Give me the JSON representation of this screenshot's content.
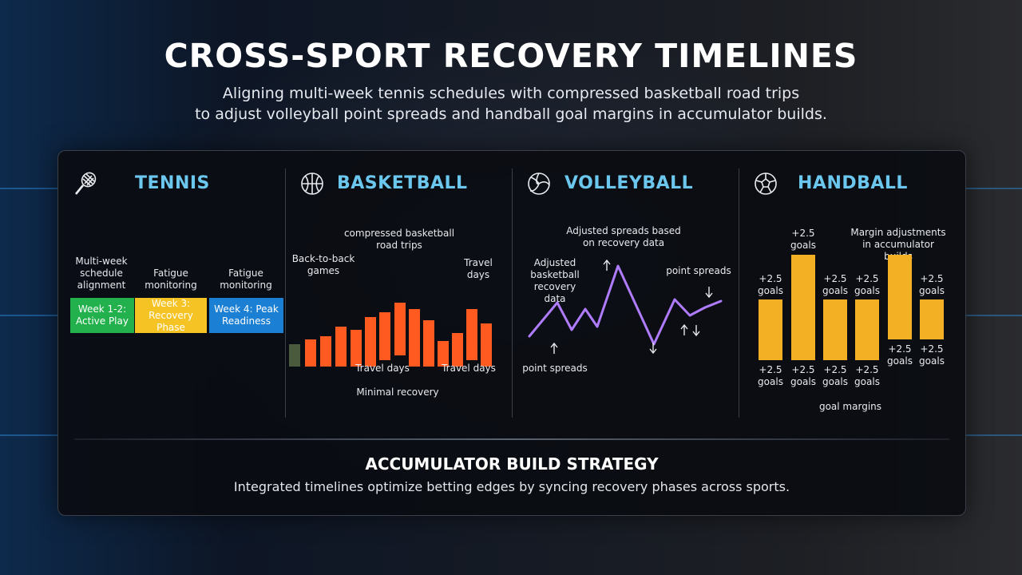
{
  "header": {
    "title": "CROSS-SPORT RECOVERY TIMELINES",
    "subtitle_line1": "Aligning multi-week tennis schedules with compressed basketball road trips",
    "subtitle_line2": "to adjust volleyball point spreads and handball goal margins in accumulator builds."
  },
  "colors": {
    "accent": "#6cc7ee",
    "green": "#22b14c",
    "yellow": "#f6c324",
    "blue": "#1b7fd4",
    "orange": "#ff5a1f",
    "purple": "#b07cff",
    "gold": "#f4b025"
  },
  "tennis": {
    "name": "TENNIS",
    "icon": "tennis-racket-icon",
    "labels": [
      "Multi-week schedule alignment",
      "Fatigue monitoring",
      "Fatigue monitoring"
    ],
    "weeks": [
      {
        "label": "Week 1-2: Active Play",
        "color": "#22b14c",
        "text_color": "#ffffff"
      },
      {
        "label": "Week 3: Recovery Phase",
        "color": "#f6c324",
        "text_color": "#ffffff"
      },
      {
        "label": "Week 4: Peak Readiness",
        "color": "#1b7fd4",
        "text_color": "#ffffff"
      }
    ]
  },
  "basketball": {
    "name": "BASKETBALL",
    "icon": "basketball-icon",
    "annotations": {
      "compressed": "compressed basketball road trips",
      "back_to_back": "Back-to-back games",
      "travel_days_top": "Travel days",
      "travel_days_1": "Travel days",
      "travel_days_2": "Travel days",
      "minimal_recovery": "Minimal recovery"
    }
  },
  "volleyball": {
    "name": "VOLLEYBALL",
    "icon": "volleyball-icon",
    "annotations": {
      "adjusted_spreads": "Adjusted spreads based on recovery data",
      "adjusted_basketball": "Adjusted basketball recovery data",
      "point_spreads_right": "point spreads",
      "point_spreads_bottom": "point spreads"
    }
  },
  "handball": {
    "name": "HANDBALL",
    "icon": "handball-icon",
    "annotations": {
      "margin_adjustments": "Margin adjustments in accumulator builds",
      "goal_margins": "goal margins"
    },
    "bar_label": "+2.5 goals"
  },
  "strategy": {
    "title": "ACCUMULATOR BUILD STRATEGY",
    "text": "Integrated timelines optimize betting edges by syncing recovery phases across sports."
  }
}
